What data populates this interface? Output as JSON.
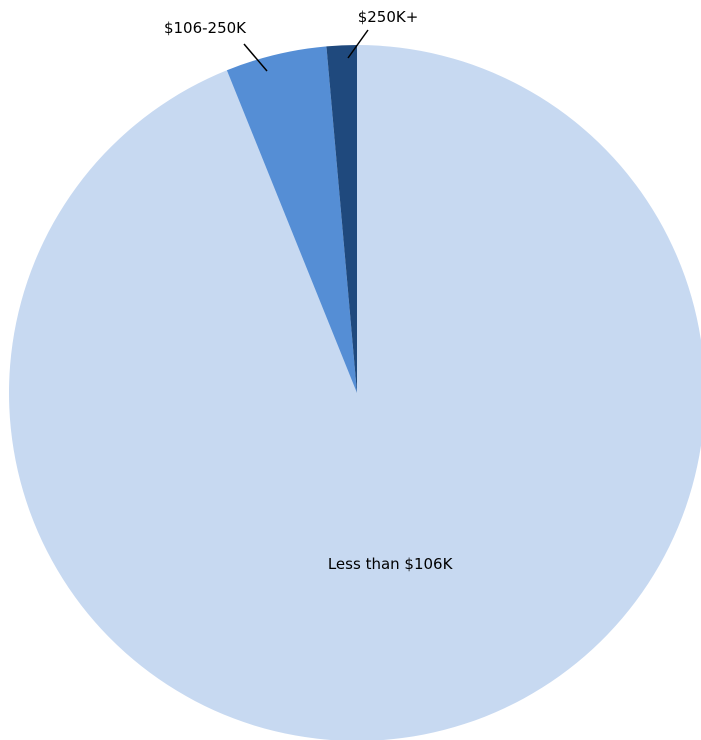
{
  "chart_data": {
    "type": "pie",
    "title": "",
    "start_angle_deg": 0,
    "direction": "clockwise",
    "legend": "none",
    "slices": [
      {
        "label": "Less than $106K",
        "value": 93.9,
        "color": "#c7d9f1",
        "label_position": "inside"
      },
      {
        "label": "$106-250K",
        "value": 4.7,
        "color": "#558ed5",
        "label_position": "outside"
      },
      {
        "label": "$250K+",
        "value": 1.4,
        "color": "#1f497d",
        "label_position": "outside"
      }
    ]
  }
}
